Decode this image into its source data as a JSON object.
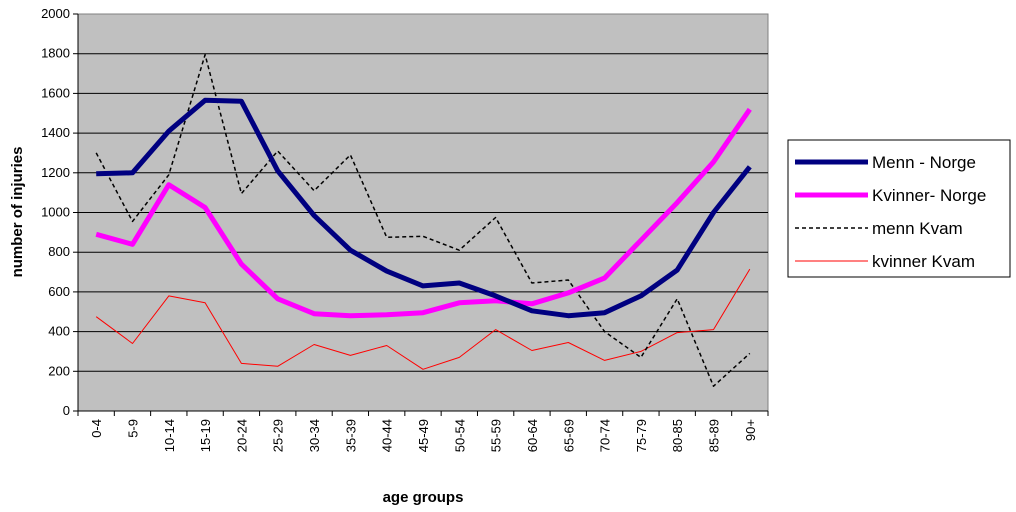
{
  "chart_data": {
    "type": "line",
    "xlabel": "age groups",
    "ylabel": "number of injuries",
    "ylim": [
      0,
      2000
    ],
    "y_ticks": [
      0,
      200,
      400,
      600,
      800,
      1000,
      1200,
      1400,
      1600,
      1800,
      2000
    ],
    "grid": "horizontal",
    "plot_background": "#c0c0c0",
    "legend_position": "right",
    "categories": [
      "0-4",
      "5-9",
      "10-14",
      "15-19",
      "20-24",
      "25-29",
      "30-34",
      "35-39",
      "40-44",
      "45-49",
      "50-54",
      "55-59",
      "60-64",
      "65-69",
      "70-74",
      "75-79",
      "80-85",
      "85-89",
      "90+"
    ],
    "series": [
      {
        "name": "Menn - Norge",
        "color": "#000080",
        "style": "thick-solid",
        "values": [
          1195,
          1200,
          1410,
          1565,
          1560,
          1210,
          985,
          810,
          705,
          630,
          645,
          580,
          505,
          480,
          495,
          580,
          710,
          1000,
          1230
        ]
      },
      {
        "name": "Kvinner- Norge",
        "color": "#ff00ff",
        "style": "thick-solid",
        "values": [
          890,
          840,
          1140,
          1025,
          740,
          565,
          490,
          480,
          485,
          495,
          545,
          555,
          540,
          595,
          670,
          860,
          1050,
          1255,
          1520
        ]
      },
      {
        "name": "menn Kvam",
        "color": "#000000",
        "style": "dashed",
        "values": [
          1300,
          955,
          1190,
          1795,
          1095,
          1310,
          1110,
          1290,
          875,
          880,
          810,
          975,
          645,
          660,
          400,
          270,
          565,
          125,
          290
        ]
      },
      {
        "name": "kvinner Kvam",
        "color": "#ff0000",
        "style": "thin-solid",
        "values": [
          475,
          340,
          580,
          545,
          240,
          225,
          335,
          280,
          330,
          210,
          270,
          410,
          305,
          345,
          255,
          300,
          395,
          410,
          715
        ]
      }
    ]
  }
}
